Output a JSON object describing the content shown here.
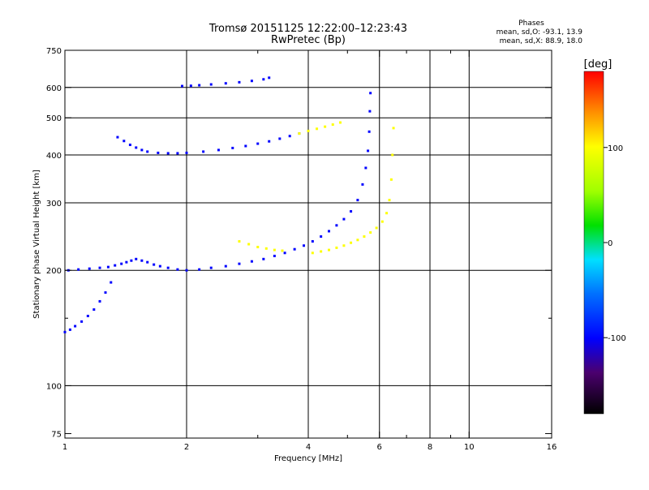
{
  "header": {
    "title_line1": "Tromsø 20151125 12:22:00–12:23:43",
    "title_line2": "RwPretec (Bp)",
    "phase_title": "Phases",
    "phase_line1": "mean, sd,O: -93.1, 13.9",
    "phase_line2": "mean, sd,X:  88.9, 18.0"
  },
  "colorbar": {
    "unit_label": "[deg]",
    "min": -180,
    "max": 180,
    "tick_values": [
      100,
      0,
      -100
    ],
    "tick_labels": [
      "100",
      "0",
      "-100"
    ]
  },
  "chart_data": {
    "type": "scatter",
    "xlabel": "Frequency [MHz]",
    "ylabel": "Stationary phase Virtual Height [km]",
    "x_scale": "log",
    "y_scale": "log",
    "xlim": [
      1,
      16
    ],
    "ylim": [
      73,
      750
    ],
    "x_ticks": [
      1,
      2,
      4,
      6,
      8,
      10,
      16
    ],
    "x_tick_labels": [
      "1",
      "2",
      "4",
      "6",
      "8",
      "10",
      "16"
    ],
    "x_grid": [
      2,
      4,
      6,
      8,
      10
    ],
    "x_minor": [
      3,
      5,
      7,
      9
    ],
    "y_ticks": [
      75,
      100,
      200,
      300,
      400,
      500,
      600,
      750
    ],
    "y_tick_labels": [
      "75",
      "100",
      "200",
      "300",
      "400",
      "500",
      "600",
      "750"
    ],
    "y_grid": [
      100,
      200,
      300,
      400,
      500,
      600
    ],
    "y_minor": [
      150
    ],
    "grid": true,
    "series": [
      {
        "points_x": [
          1.02,
          1.08,
          1.15,
          1.22,
          1.28,
          1.33,
          1.38,
          1.42,
          1.46,
          1.5,
          1.55,
          1.6,
          1.66,
          1.72,
          1.8,
          1.9,
          2.0,
          2.15,
          2.3,
          2.5,
          2.7,
          2.9,
          3.1,
          3.3,
          3.5,
          3.7,
          3.9,
          4.1,
          4.3,
          4.5,
          4.7,
          4.9,
          5.1,
          5.3,
          5.45,
          5.55,
          5.62,
          5.66,
          5.68,
          5.7
        ],
        "points_y": [
          200,
          201,
          202,
          203,
          204,
          206,
          208,
          210,
          212,
          214,
          212,
          210,
          207,
          205,
          203,
          201,
          200,
          201,
          203,
          205,
          208,
          211,
          214,
          218,
          222,
          227,
          232,
          238,
          245,
          253,
          262,
          272,
          285,
          305,
          335,
          370,
          410,
          460,
          520,
          580
        ],
        "phase": -100
      },
      {
        "points_x": [
          1.0,
          1.03,
          1.06,
          1.1,
          1.14,
          1.18,
          1.22,
          1.26,
          1.3
        ],
        "points_y": [
          138,
          140,
          143,
          147,
          152,
          158,
          166,
          175,
          186
        ],
        "phase": -100
      },
      {
        "points_x": [
          1.35,
          1.4,
          1.45,
          1.5,
          1.55,
          1.6,
          1.7,
          1.8,
          1.9,
          2.0,
          2.2,
          2.4,
          2.6,
          2.8,
          3.0,
          3.2,
          3.4,
          3.6,
          3.8
        ],
        "points_y": [
          445,
          435,
          425,
          418,
          412,
          408,
          405,
          404,
          404,
          405,
          408,
          412,
          417,
          422,
          428,
          434,
          441,
          448,
          455
        ],
        "phase": -100
      },
      {
        "points_x": [
          1.95,
          2.05,
          2.15,
          2.3,
          2.5,
          2.7,
          2.9,
          3.1,
          3.2
        ],
        "points_y": [
          605,
          606,
          608,
          611,
          615,
          619,
          624,
          630,
          636
        ],
        "phase": -100
      },
      {
        "points_x": [
          4.1,
          4.3,
          4.5,
          4.7,
          4.9,
          5.1,
          5.3,
          5.5,
          5.7,
          5.9,
          6.1,
          6.25,
          6.35,
          6.42,
          6.46,
          6.5
        ],
        "points_y": [
          222,
          224,
          226,
          229,
          232,
          236,
          240,
          245,
          251,
          258,
          268,
          282,
          305,
          345,
          400,
          470
        ],
        "phase": 100
      },
      {
        "points_x": [
          2.7,
          2.85,
          3.0,
          3.15,
          3.3,
          3.45
        ],
        "points_y": [
          238,
          234,
          230,
          228,
          226,
          225
        ],
        "phase": 100
      },
      {
        "points_x": [
          3.8,
          4.0,
          4.2,
          4.4,
          4.6,
          4.8
        ],
        "points_y": [
          455,
          462,
          468,
          474,
          480,
          486
        ],
        "phase": 100
      }
    ]
  }
}
